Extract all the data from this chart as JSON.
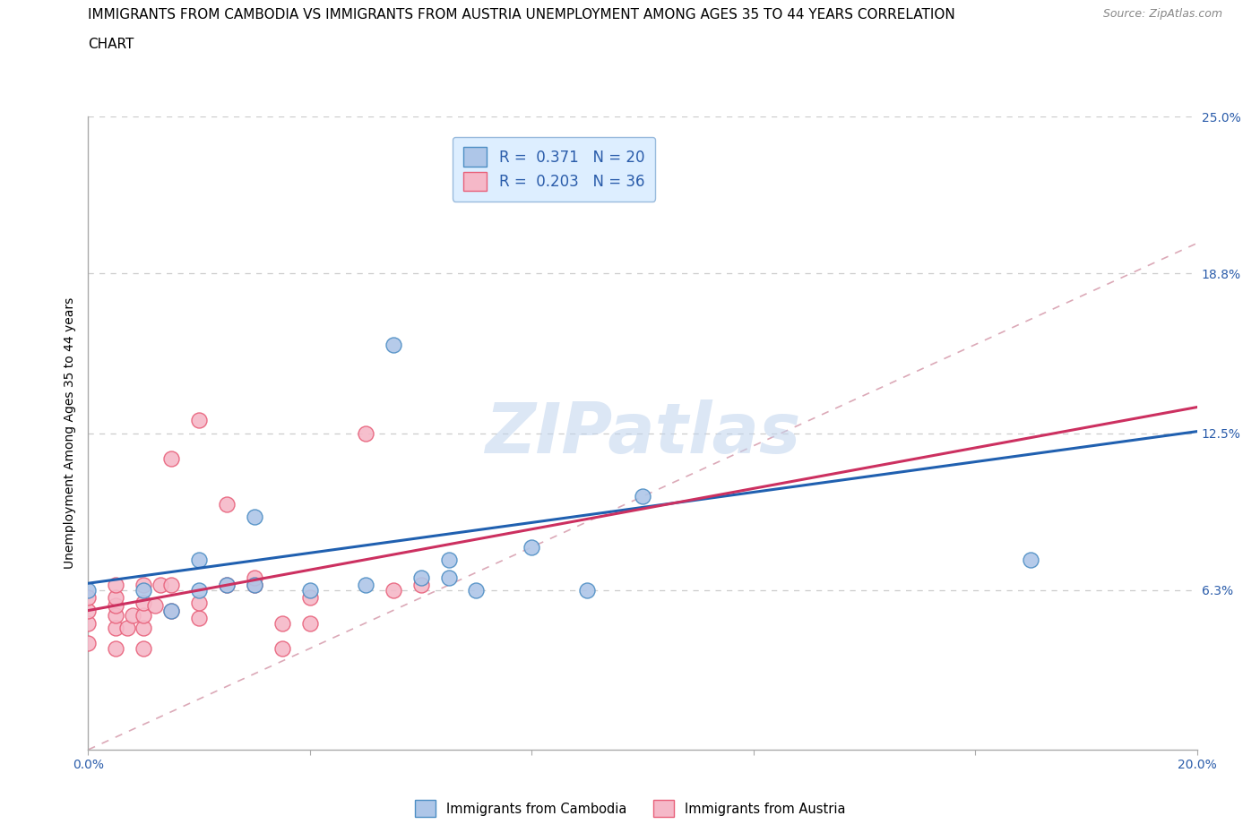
{
  "title_line1": "IMMIGRANTS FROM CAMBODIA VS IMMIGRANTS FROM AUSTRIA UNEMPLOYMENT AMONG AGES 35 TO 44 YEARS CORRELATION",
  "title_line2": "CHART",
  "source_text": "Source: ZipAtlas.com",
  "ylabel": "Unemployment Among Ages 35 to 44 years",
  "xlim": [
    0.0,
    0.2
  ],
  "ylim": [
    0.0,
    0.25
  ],
  "yticks": [
    0.063,
    0.125,
    0.188,
    0.25
  ],
  "ytick_labels": [
    "6.3%",
    "12.5%",
    "18.8%",
    "25.0%"
  ],
  "xticks": [
    0.0,
    0.04,
    0.08,
    0.12,
    0.16,
    0.2
  ],
  "xtick_labels": [
    "0.0%",
    "",
    "",
    "",
    "",
    "20.0%"
  ],
  "cambodia_color": "#aec6e8",
  "austria_color": "#f5b8c8",
  "cambodia_edge": "#4d8ec4",
  "austria_edge": "#e8607a",
  "regression_cambodia_color": "#2060b0",
  "regression_austria_color": "#cc3060",
  "diagonal_color": "#d8a0b0",
  "R_cambodia": 0.371,
  "N_cambodia": 20,
  "R_austria": 0.203,
  "N_austria": 36,
  "watermark": "ZIPatlas",
  "watermark_color": "#c0d4ee",
  "cambodia_x": [
    0.0,
    0.01,
    0.015,
    0.02,
    0.025,
    0.03,
    0.04,
    0.05,
    0.055,
    0.06,
    0.065,
    0.07,
    0.08,
    0.09,
    0.095,
    0.1,
    0.17,
    0.02,
    0.03,
    0.065
  ],
  "cambodia_y": [
    0.063,
    0.063,
    0.055,
    0.063,
    0.065,
    0.065,
    0.063,
    0.065,
    0.16,
    0.068,
    0.075,
    0.063,
    0.08,
    0.063,
    0.22,
    0.1,
    0.075,
    0.075,
    0.092,
    0.068
  ],
  "austria_x": [
    0.0,
    0.0,
    0.0,
    0.0,
    0.005,
    0.005,
    0.005,
    0.005,
    0.005,
    0.005,
    0.007,
    0.008,
    0.01,
    0.01,
    0.01,
    0.01,
    0.01,
    0.012,
    0.013,
    0.015,
    0.015,
    0.015,
    0.02,
    0.02,
    0.02,
    0.025,
    0.025,
    0.03,
    0.03,
    0.035,
    0.035,
    0.04,
    0.04,
    0.05,
    0.055,
    0.06
  ],
  "austria_y": [
    0.042,
    0.05,
    0.055,
    0.06,
    0.04,
    0.048,
    0.053,
    0.057,
    0.06,
    0.065,
    0.048,
    0.053,
    0.04,
    0.048,
    0.053,
    0.058,
    0.065,
    0.057,
    0.065,
    0.055,
    0.065,
    0.115,
    0.052,
    0.058,
    0.13,
    0.065,
    0.097,
    0.065,
    0.068,
    0.04,
    0.05,
    0.05,
    0.06,
    0.125,
    0.063,
    0.065
  ],
  "grid_color": "#cccccc",
  "title_fontsize": 11,
  "label_fontsize": 10,
  "tick_label_color": "#2a5caa",
  "axis_color": "#aaaaaa",
  "legend_box_facecolor": "#ddeeff",
  "legend_box_edgecolor": "#99bbdd",
  "background_color": "#ffffff"
}
